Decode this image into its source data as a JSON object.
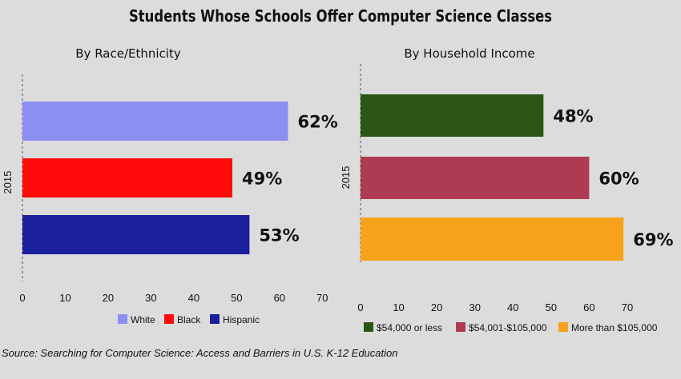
{
  "title": "Students Whose Schools Offer Computer Science Classes",
  "source": "Source: Searching for Computer Science: Access and Barriers in U.S. K-12 Education",
  "chart_data": [
    {
      "type": "bar",
      "orientation": "horizontal",
      "title": "By Race/Ethnicity",
      "categories": [
        "2015"
      ],
      "ylabel": "2015",
      "xlim": [
        0,
        70
      ],
      "xticks": [
        0,
        10,
        20,
        30,
        40,
        50,
        60,
        70
      ],
      "legend_position": "bottom",
      "series": [
        {
          "name": "White",
          "values": [
            62
          ],
          "label": "62%",
          "color": "#8c8ff2"
        },
        {
          "name": "Black",
          "values": [
            49
          ],
          "label": "49%",
          "color": "#ff0a0a"
        },
        {
          "name": "Hispanic",
          "values": [
            53
          ],
          "label": "53%",
          "color": "#1a1f9b"
        }
      ]
    },
    {
      "type": "bar",
      "orientation": "horizontal",
      "title": "By Household Income",
      "categories": [
        "2015"
      ],
      "ylabel": "2015",
      "xlim": [
        0,
        70
      ],
      "xticks": [
        0,
        10,
        20,
        30,
        40,
        50,
        60,
        70
      ],
      "legend_position": "bottom",
      "series": [
        {
          "name": "$54,000 or less",
          "values": [
            48
          ],
          "label": "48%",
          "color": "#2d5516"
        },
        {
          "name": "$54,001-$105,000",
          "values": [
            60
          ],
          "label": "60%",
          "color": "#ae3b52"
        },
        {
          "name": "More than $105,000",
          "values": [
            69
          ],
          "label": "69%",
          "color": "#f7a21b"
        }
      ]
    }
  ]
}
